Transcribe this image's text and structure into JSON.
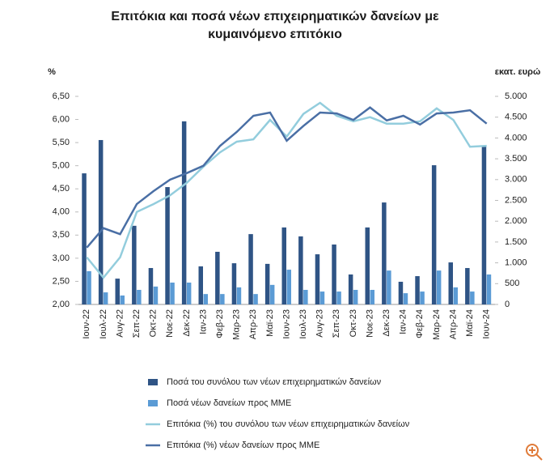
{
  "chart_data": {
    "type": "combo",
    "title": "Επιτόκια και ποσά νέων επιχειρηματικών δανείων με κυμαινόμενο επιτόκιο",
    "ylabel": "%",
    "y2label": "εκατ. ευρώ",
    "categories": [
      "Ιουν-22",
      "Ιουλ-22",
      "Αυγ-22",
      "Σεπ-22",
      "Οκτ-22",
      "Νοε-22",
      "Δεκ-22",
      "Ιαν-23",
      "Φεβ-23",
      "Μαρ-23",
      "Απρ-23",
      "Μαϊ-23",
      "Ιουν-23",
      "Ιουλ-23",
      "Αυγ-23",
      "Σεπ-23",
      "Οκτ-23",
      "Νοε-23",
      "Δεκ-23",
      "Ιαν-24",
      "Φεβ-24",
      "Μαρ-24",
      "Απρ-24",
      "Μαϊ-24",
      "Ιουν-24"
    ],
    "ylim": [
      2,
      6.5
    ],
    "yticks": [
      {
        "value": 2,
        "label": "2,00"
      },
      {
        "value": 2.5,
        "label": "2,50"
      },
      {
        "value": 3,
        "label": "3,00"
      },
      {
        "value": 3.5,
        "label": "3,50"
      },
      {
        "value": 4,
        "label": "4,00"
      },
      {
        "value": 4.5,
        "label": "4,50"
      },
      {
        "value": 5,
        "label": "5,00"
      },
      {
        "value": 5.5,
        "label": "5,50"
      },
      {
        "value": 6,
        "label": "6,00"
      },
      {
        "value": 6.5,
        "label": "6,50"
      }
    ],
    "y2lim": [
      0,
      5000
    ],
    "y2ticks": [
      0,
      500,
      {
        "value": 1000,
        "label": "1.000"
      },
      {
        "value": 1500,
        "label": "1.500"
      },
      {
        "value": 2000,
        "label": "2.000"
      },
      {
        "value": 2500,
        "label": "2.500"
      },
      {
        "value": 3000,
        "label": "3.000"
      },
      {
        "value": 3500,
        "label": "3.500"
      },
      {
        "value": 4000,
        "label": "4.000"
      },
      {
        "value": 4500,
        "label": "4.500"
      },
      {
        "value": 5000,
        "label": "5.000"
      }
    ],
    "grid": false,
    "legend": "bottom",
    "series": [
      {
        "name": "Ποσά του συνόλου των νέων επιχειρηματικών δανείων",
        "type": "bar",
        "axis": "y2",
        "color": "#2f5485",
        "values": [
          3150,
          3950,
          620,
          1890,
          875,
          2820,
          4400,
          915,
          1265,
          990,
          1690,
          975,
          1850,
          1635,
          1205,
          1440,
          720,
          1850,
          2450,
          545,
          680,
          3345,
          1010,
          875,
          3815
        ]
      },
      {
        "name": "Ποσά νέων δανείων προς ΜΜΕ",
        "type": "bar",
        "axis": "y2",
        "color": "#5b9bd5",
        "values": [
          800,
          290,
          215,
          350,
          430,
          525,
          525,
          250,
          250,
          410,
          250,
          470,
          835,
          350,
          310,
          310,
          350,
          350,
          815,
          270,
          310,
          815,
          410,
          310,
          720
        ]
      },
      {
        "name": "Επιτόκια (%) του συνόλου των νέων επιχειρηματικών δανείων",
        "type": "line",
        "axis": "y",
        "color": "#93cddd",
        "values": [
          3.02,
          2.58,
          3.02,
          4.0,
          4.17,
          4.36,
          4.63,
          4.98,
          5.29,
          5.52,
          5.57,
          5.99,
          5.63,
          6.12,
          6.36,
          6.08,
          5.96,
          6.05,
          5.91,
          5.91,
          5.96,
          6.24,
          5.99,
          5.41,
          5.43
        ]
      },
      {
        "name": "Επιτόκια (%) νέων δανείων προς ΜΜΕ",
        "type": "line",
        "axis": "y",
        "color": "#4a6fa5",
        "values": [
          3.23,
          3.65,
          3.52,
          4.17,
          4.45,
          4.7,
          4.84,
          5.0,
          5.43,
          5.73,
          6.08,
          6.15,
          5.54,
          5.86,
          6.15,
          6.13,
          5.99,
          6.26,
          5.98,
          6.08,
          5.89,
          6.13,
          6.15,
          6.2,
          5.91
        ]
      }
    ]
  }
}
